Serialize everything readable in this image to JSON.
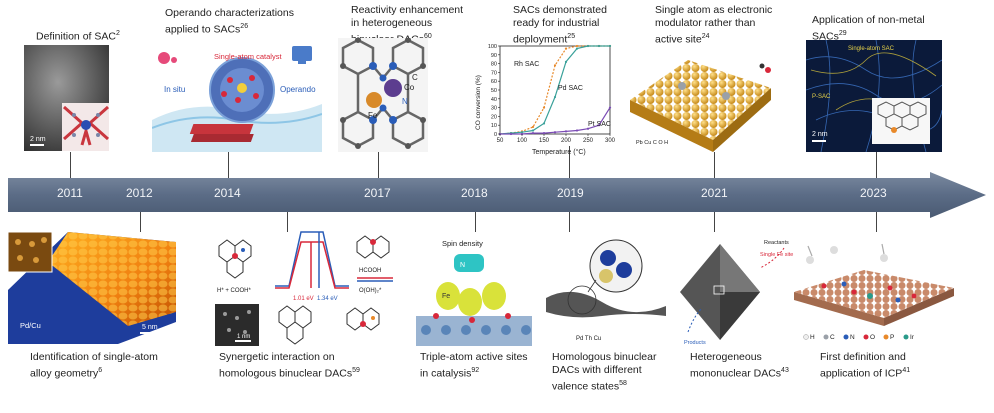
{
  "colors": {
    "arrow": "#5b6c86",
    "arrow_light": "#7b8aa0",
    "year_text": "#f2f4f8",
    "accent_red": "#d8283a",
    "accent_blue": "#2a5db8"
  },
  "years": [
    "2011",
    "2012",
    "2014",
    "2017",
    "2018",
    "2019",
    "2021",
    "2023"
  ],
  "top_captions": [
    {
      "text": "Definition of SAC",
      "ref": "2"
    },
    {
      "text": "Operando characterizations applied to SACs",
      "ref": "26"
    },
    {
      "text": "Reactivity enhancement in heterogeneous binuclear DACs",
      "ref": "60"
    },
    {
      "text": "SACs demonstrated ready for industrial deployment",
      "ref": "25"
    },
    {
      "text": "Single atom as electronic modulator rather than active site",
      "ref": "24"
    },
    {
      "text": "Application of non-metal SACs",
      "ref": "29"
    }
  ],
  "bottom_captions": [
    {
      "text": "Identification of single-atom alloy geometry",
      "ref": "6"
    },
    {
      "text": "Synergetic interaction on homologous binuclear DACs",
      "ref": "59"
    },
    {
      "text": "Triple-atom active sites in catalysis",
      "ref": "92"
    },
    {
      "text": "Homologous binuclear DACs with different valence states",
      "ref": "58"
    },
    {
      "text": "Heterogeneous mononuclear DACs",
      "ref": "43"
    },
    {
      "text": "First definition and application of ICP",
      "ref": "41"
    }
  ],
  "panel_labels": {
    "sac_scale": "2 nm",
    "operando_title": "Single-atom catalyst",
    "in_situ": "In situ",
    "operando": "Operando",
    "dac_co": "Co",
    "dac_fe": "Fe",
    "dac_c": "C",
    "dac_n": "N",
    "deploy_ylabel": "CO conversion (%)",
    "deploy_xlabel": "Temperature (°C)",
    "rh": "Rh SAC",
    "pd": "Pd SAC",
    "pt": "Pt SAC",
    "mod_legend": "Pb  Cu  C  O  H",
    "nonmetal_scale": "2 nm",
    "nonmetal_a": "Single-atom SAC",
    "nonmetal_b": "P-SAC",
    "alloy_label": "Pd/Cu",
    "alloy_scale": "5 nm",
    "syn_left": "H* + COOH*",
    "syn_e1": "1.01 eV",
    "syn_e2": "1.34 eV",
    "syn_hcooh": "HCOOH",
    "syn_ooh": "O(OH)₂*",
    "syn_scale": "1 nm",
    "tri_title": "Spin density",
    "tri_n": "N",
    "tri_fe": "Fe",
    "val_legend": "Pd  Th  Cu",
    "mono_reactants": "Reactants",
    "mono_single": "Single Fe site",
    "mono_products": "Products",
    "icp_legend": [
      "H",
      "C",
      "N",
      "O",
      "P",
      "Ir"
    ]
  },
  "chart_data": {
    "type": "line",
    "title": "",
    "xlabel": "Temperature (°C)",
    "ylabel": "CO conversion (%)",
    "xlim": [
      50,
      300
    ],
    "ylim": [
      0,
      100
    ],
    "xticks": [
      50,
      100,
      150,
      200,
      250,
      300
    ],
    "yticks": [
      0,
      10,
      20,
      30,
      40,
      50,
      60,
      70,
      80,
      90,
      100
    ],
    "series": [
      {
        "name": "Rh SAC",
        "color": "#e8892a",
        "x": [
          50,
          75,
          100,
          125,
          150,
          175,
          200,
          225,
          250,
          275,
          300
        ],
        "y": [
          0,
          1,
          3,
          8,
          30,
          78,
          97,
          100,
          100,
          100,
          100
        ]
      },
      {
        "name": "Pd SAC",
        "color": "#3aa19a",
        "x": [
          50,
          75,
          100,
          125,
          150,
          175,
          200,
          225,
          250,
          275,
          300
        ],
        "y": [
          0,
          1,
          2,
          4,
          12,
          42,
          82,
          97,
          100,
          100,
          100
        ]
      },
      {
        "name": "Pt SAC",
        "color": "#7b4bb5",
        "x": [
          50,
          75,
          100,
          125,
          150,
          175,
          200,
          225,
          250,
          275,
          300
        ],
        "y": [
          0,
          0,
          0,
          1,
          1,
          2,
          3,
          4,
          6,
          10,
          30
        ]
      }
    ]
  }
}
